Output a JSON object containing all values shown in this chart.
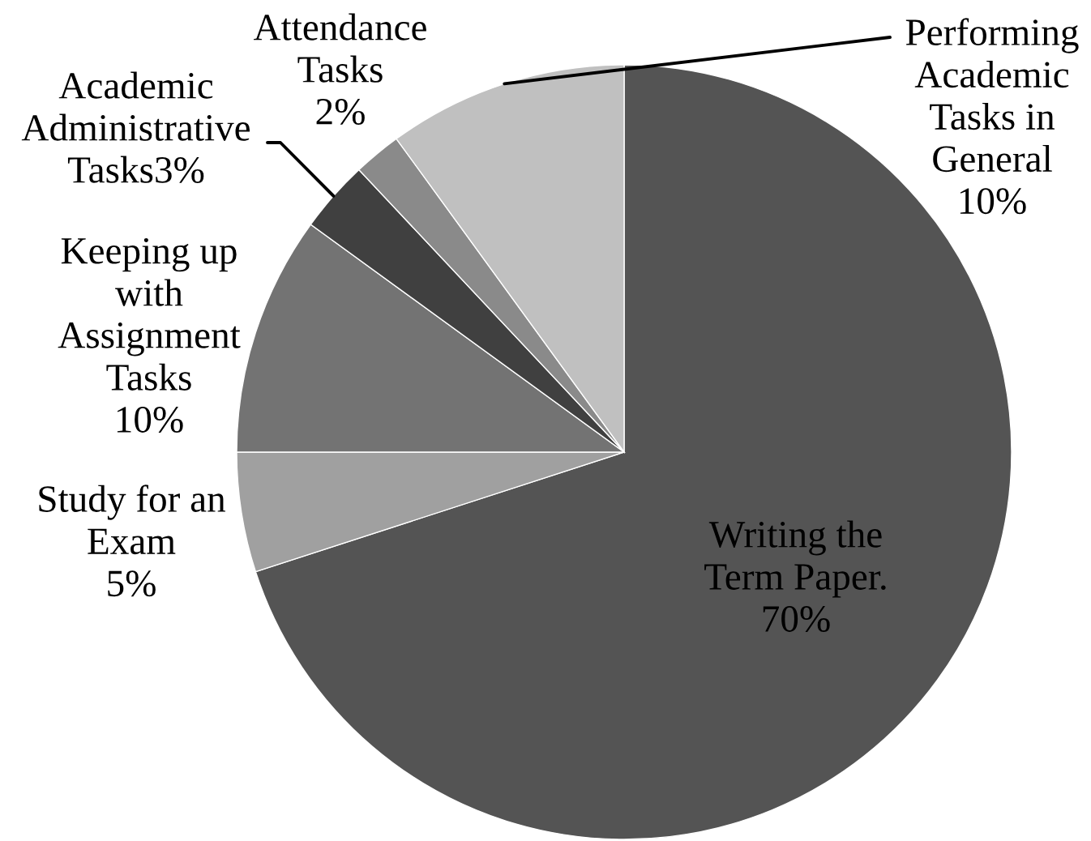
{
  "chart_data": {
    "type": "pie",
    "categories": [
      "Writing the Term Paper.",
      "Study for an Exam",
      "Keeping up with Assignment Tasks",
      "Academic Administrative Tasks",
      "Attendance Tasks",
      "Performing Academic Tasks in General"
    ],
    "values": [
      70,
      5,
      10,
      3,
      2,
      10
    ],
    "colors": [
      "#545454",
      "#a0a0a0",
      "#737373",
      "#404040",
      "#8a8a8a",
      "#c0c0c0"
    ],
    "value_labels": [
      "70%",
      "5%",
      "10%",
      "3%",
      "2%",
      "10%"
    ]
  }
}
